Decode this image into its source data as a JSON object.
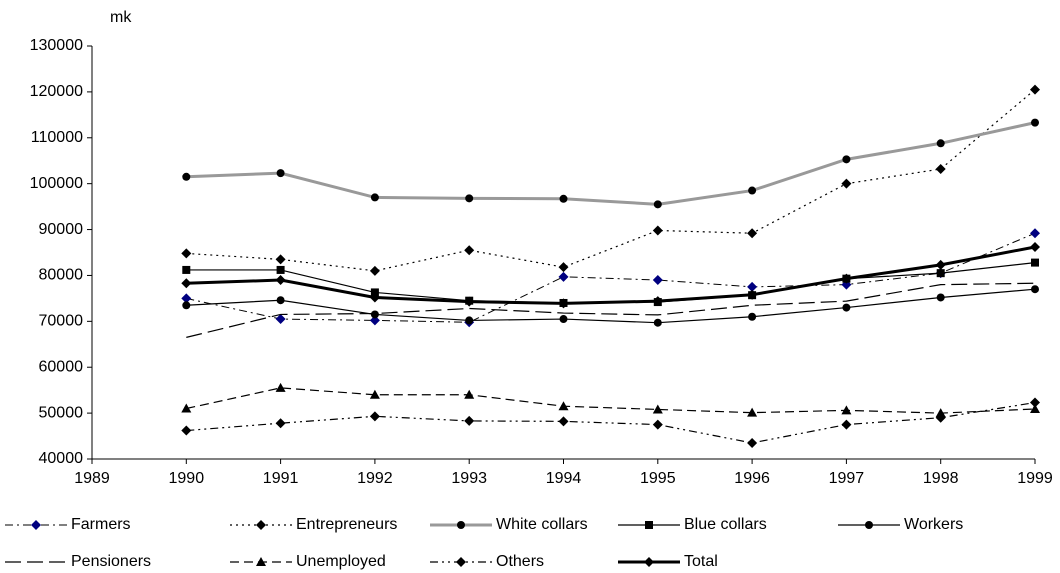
{
  "chart_data": {
    "type": "line",
    "y_label": "mk",
    "x": [
      1990,
      1991,
      1992,
      1993,
      1994,
      1995,
      1996,
      1997,
      1998,
      1999
    ],
    "xlim": [
      1989,
      1999
    ],
    "xticks": [
      1989,
      1990,
      1991,
      1992,
      1993,
      1994,
      1995,
      1996,
      1997,
      1998,
      1999
    ],
    "ylim": [
      40000,
      130000
    ],
    "yticks": [
      40000,
      50000,
      60000,
      70000,
      80000,
      90000,
      100000,
      110000,
      120000,
      130000
    ],
    "grid": false,
    "series": [
      {
        "name": "Farmers",
        "color": "#000000",
        "marker_color": "#000080",
        "dash": "8 4 2 4",
        "width": 1,
        "marker": "diamond",
        "values": [
          75000,
          70500,
          70200,
          69800,
          79700,
          79000,
          77500,
          78000,
          80500,
          89200
        ]
      },
      {
        "name": "Entrepreneurs",
        "color": "#000000",
        "marker_color": "#000000",
        "dash": "2 4",
        "width": 1.2,
        "marker": "diamond",
        "values": [
          84800,
          83500,
          81000,
          85500,
          81800,
          89800,
          89200,
          100000,
          103200,
          120500
        ]
      },
      {
        "name": "White collars",
        "color": "#999999",
        "marker_color": "#000000",
        "dash": "none",
        "width": 3,
        "marker": "circle",
        "values": [
          101500,
          102300,
          97000,
          96800,
          96700,
          95500,
          98500,
          105300,
          108800,
          113300
        ]
      },
      {
        "name": "Blue collars",
        "color": "#000000",
        "marker_color": "#000000",
        "dash": "none",
        "width": 1.2,
        "marker": "square",
        "values": [
          81200,
          81200,
          76300,
          74500,
          74000,
          74200,
          75700,
          79300,
          80500,
          82800
        ]
      },
      {
        "name": "Workers",
        "color": "#000000",
        "marker_color": "#000000",
        "dash": "none",
        "width": 1.2,
        "marker": "circle",
        "values": [
          73500,
          74600,
          71500,
          70200,
          70500,
          69700,
          71000,
          73000,
          75200,
          77000
        ]
      },
      {
        "name": "Pensioners",
        "color": "#000000",
        "marker_color": "#000000",
        "dash": "16 6",
        "width": 1.2,
        "marker": "none",
        "values": [
          66500,
          71500,
          71700,
          72800,
          71800,
          71400,
          73500,
          74400,
          78000,
          78300
        ]
      },
      {
        "name": "Unemployed",
        "color": "#000000",
        "marker_color": "#000000",
        "dash": "9 5",
        "width": 1.2,
        "marker": "triangle",
        "values": [
          51000,
          55500,
          54000,
          54000,
          51500,
          50800,
          50100,
          50600,
          50000,
          50900
        ]
      },
      {
        "name": "Others",
        "color": "#000000",
        "marker_color": "#000000",
        "dash": "8 4 2 4 2 4",
        "width": 1.2,
        "marker": "diamond",
        "values": [
          46200,
          47800,
          49300,
          48300,
          48200,
          47500,
          43500,
          47500,
          49000,
          52300
        ]
      },
      {
        "name": "Total",
        "color": "#000000",
        "marker_color": "#000000",
        "dash": "none",
        "width": 3,
        "marker": "diamond",
        "values": [
          78300,
          79000,
          75200,
          74300,
          73900,
          74400,
          75800,
          79300,
          82300,
          86200
        ]
      }
    ]
  }
}
